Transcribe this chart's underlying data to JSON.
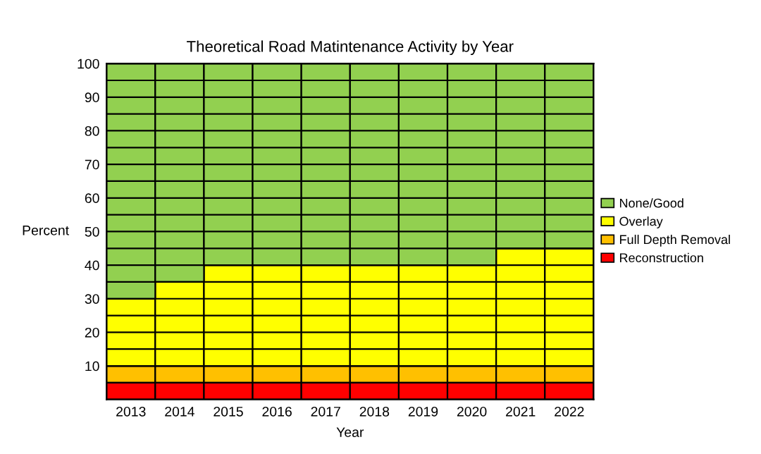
{
  "chart_data": {
    "type": "bar",
    "stacked": true,
    "title": "Theoretical Road Matintenance Activity by Year",
    "xlabel": "Year",
    "ylabel": "Percent",
    "categories": [
      "2013",
      "2014",
      "2015",
      "2016",
      "2017",
      "2018",
      "2019",
      "2020",
      "2021",
      "2022"
    ],
    "series": [
      {
        "name": "Reconstruction",
        "color": "#ff0000",
        "values": [
          5,
          5,
          5,
          5,
          5,
          5,
          5,
          5,
          5,
          5
        ]
      },
      {
        "name": "Full Depth Removal",
        "color": "#ffc000",
        "values": [
          5,
          5,
          5,
          5,
          5,
          5,
          5,
          5,
          5,
          5
        ]
      },
      {
        "name": "Overlay",
        "color": "#ffff00",
        "values": [
          20,
          25,
          30,
          30,
          30,
          30,
          30,
          30,
          35,
          35
        ]
      },
      {
        "name": "None/Good",
        "color": "#92d050",
        "values": [
          70,
          65,
          60,
          60,
          60,
          60,
          60,
          60,
          55,
          55
        ]
      }
    ],
    "ylim": [
      0,
      100
    ],
    "yticks": [
      {
        "value": 5,
        "label": null
      },
      10,
      {
        "value": 15,
        "label": null
      },
      20,
      {
        "value": 25,
        "label": null
      },
      30,
      {
        "value": 35,
        "label": null
      },
      40,
      {
        "value": 45,
        "label": null
      },
      50,
      {
        "value": 55,
        "label": null
      },
      60,
      {
        "value": 65,
        "label": null
      },
      70,
      {
        "value": 75,
        "label": null
      },
      80,
      {
        "value": 85,
        "label": null
      },
      90,
      {
        "value": 95,
        "label": null
      },
      100
    ],
    "grid": "y",
    "legend": "right"
  }
}
